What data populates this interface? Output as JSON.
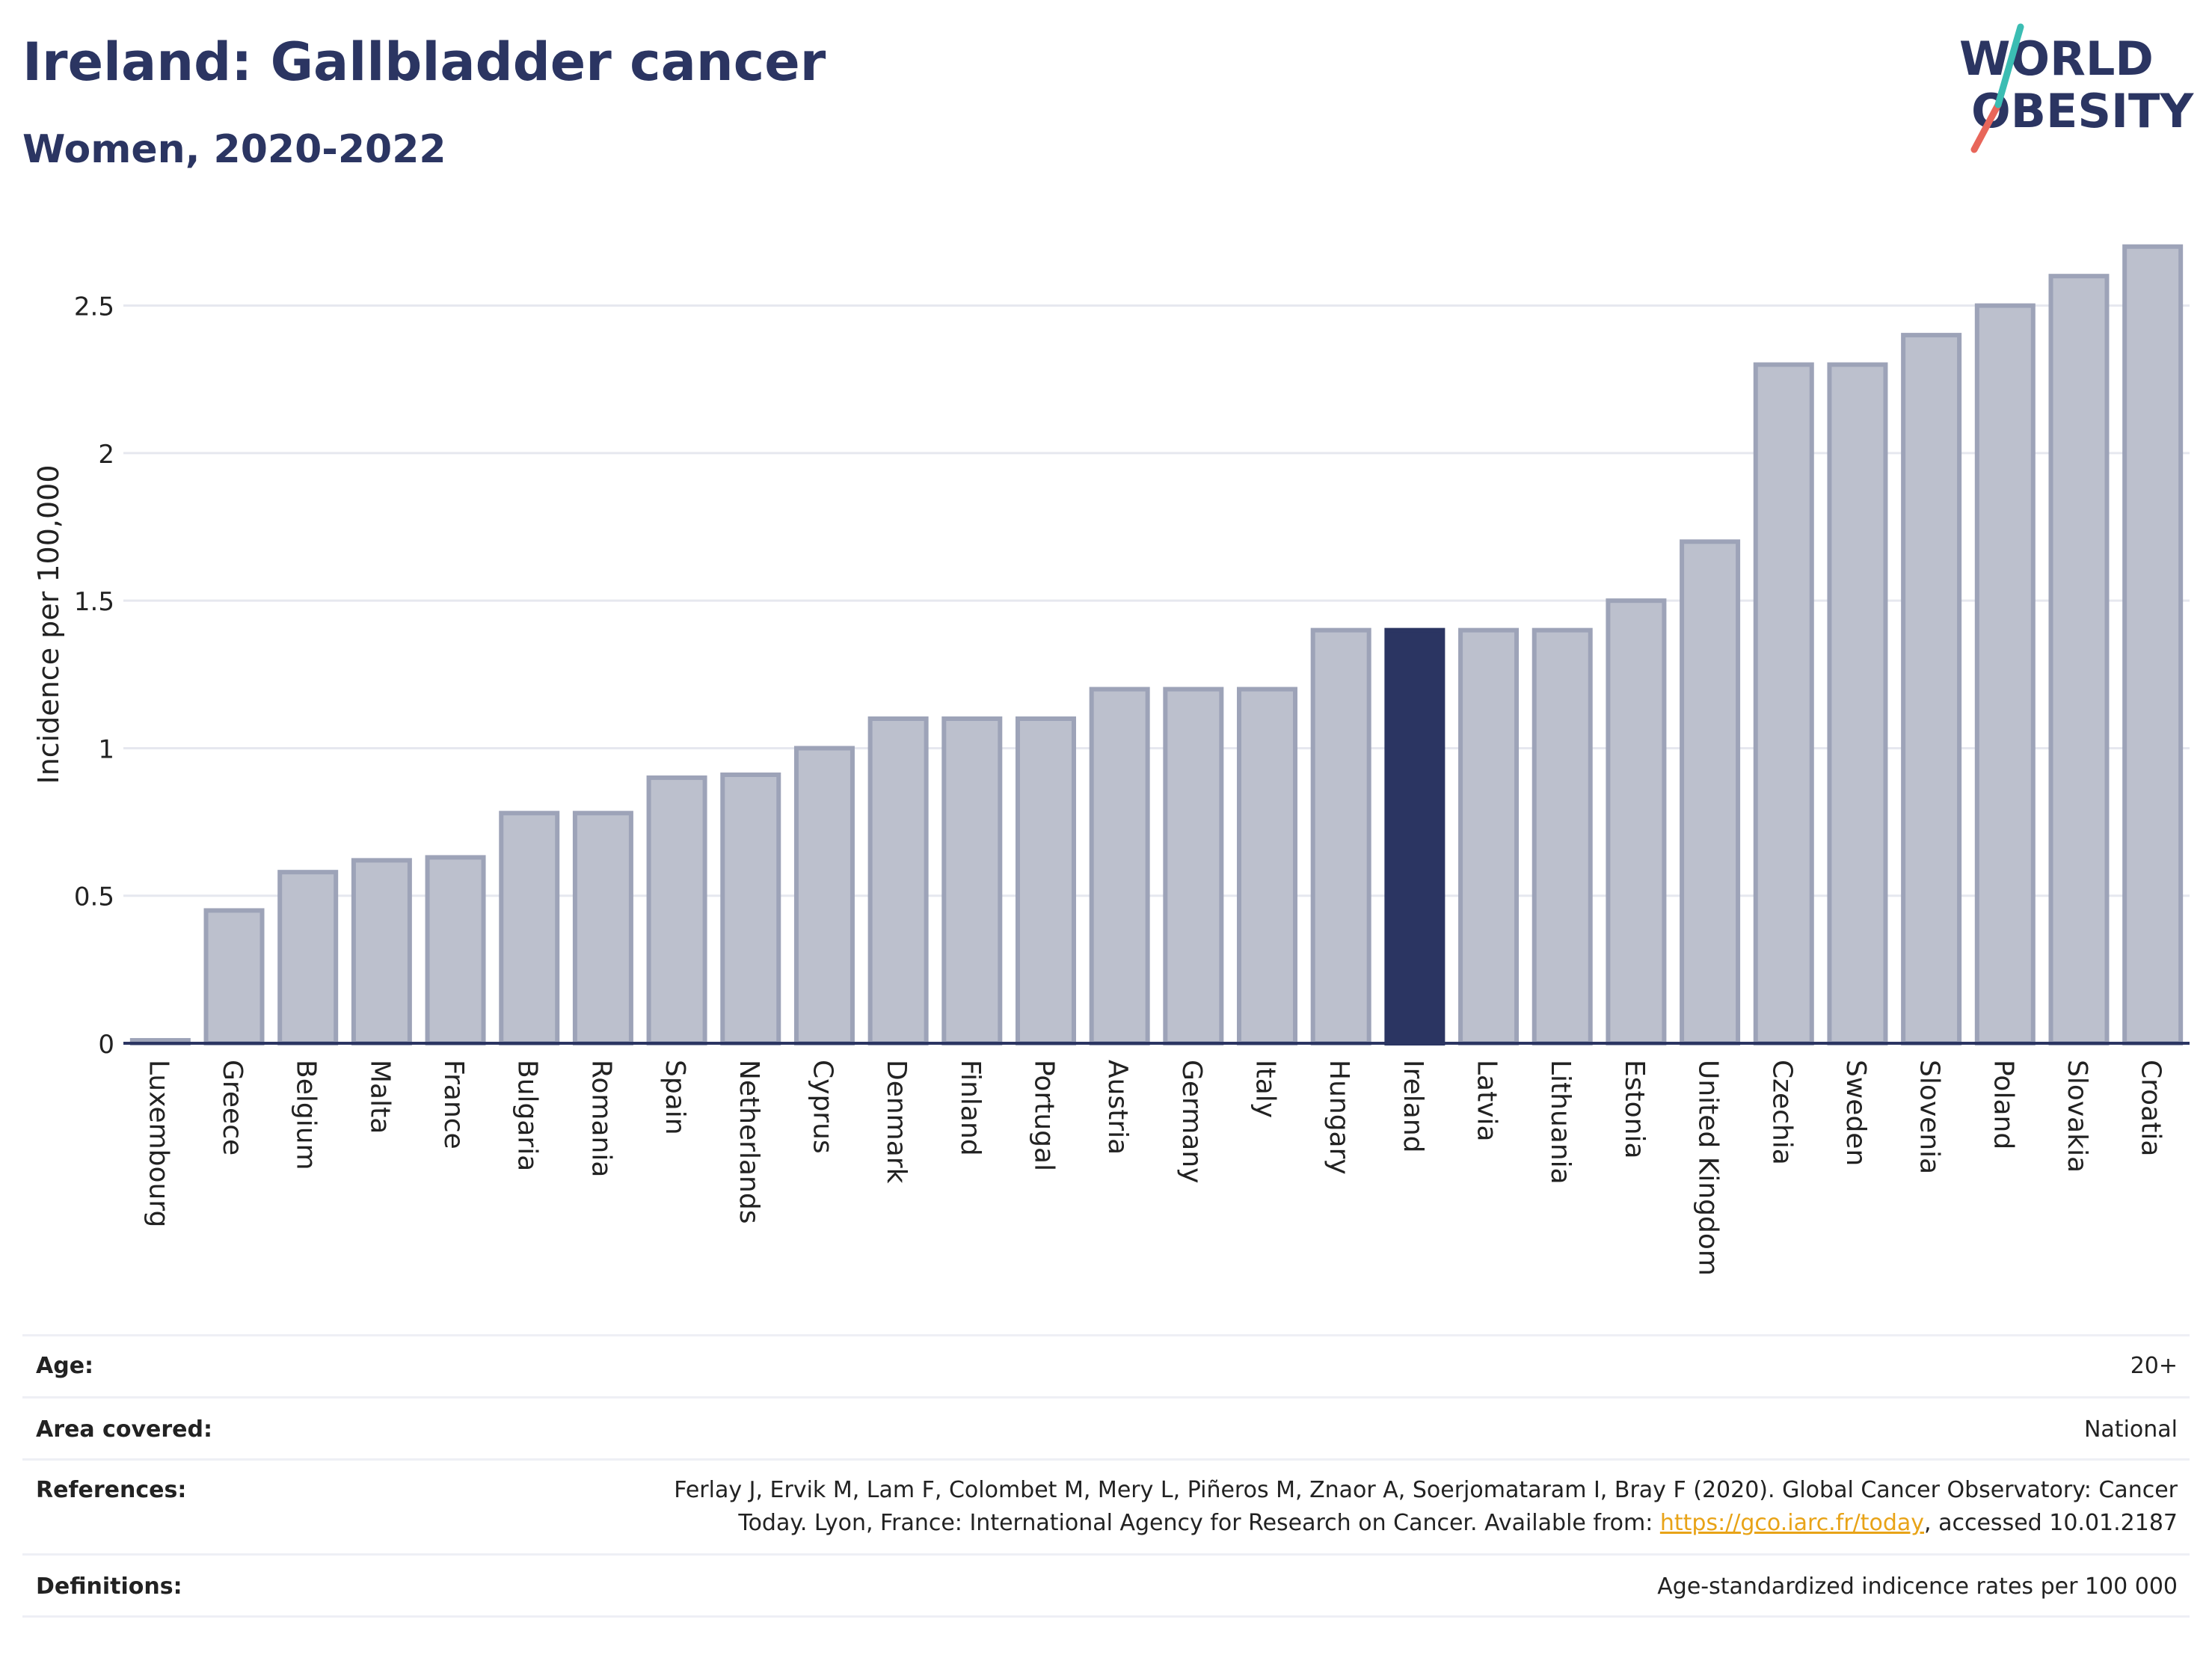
{
  "header": {
    "title": "Ireland: Gallbladder cancer",
    "subtitle": "Women, 2020-2022"
  },
  "logo": {
    "line1": "WORLD",
    "line2": "OBESITY"
  },
  "chart_data": {
    "type": "bar",
    "ylabel": "Incidence per 100,000",
    "ylim": [
      0,
      2.75
    ],
    "yticks": [
      "0",
      "0.5",
      "1",
      "1.5",
      "2",
      "2.5"
    ],
    "ytick_values": [
      0,
      0.5,
      1,
      1.5,
      2,
      2.5
    ],
    "grid": true,
    "highlight": "Ireland",
    "colors": {
      "bar": "#bcc0cd",
      "bar_edge": "#9da3b8",
      "highlight": "#2b3562",
      "grid": "#e6e8ef"
    },
    "categories": [
      "Luxembourg",
      "Greece",
      "Belgium",
      "Malta",
      "France",
      "Bulgaria",
      "Romania",
      "Spain",
      "Netherlands",
      "Cyprus",
      "Denmark",
      "Finland",
      "Portugal",
      "Austria",
      "Germany",
      "Italy",
      "Hungary",
      "Ireland",
      "Latvia",
      "Lithuania",
      "Estonia",
      "United Kingdom",
      "Czechia",
      "Sweden",
      "Slovenia",
      "Poland",
      "Slovakia",
      "Croatia"
    ],
    "values": [
      0.01,
      0.45,
      0.58,
      0.62,
      0.63,
      0.78,
      0.78,
      0.9,
      0.91,
      1.0,
      1.1,
      1.1,
      1.1,
      1.2,
      1.2,
      1.2,
      1.4,
      1.4,
      1.4,
      1.4,
      1.5,
      1.7,
      2.3,
      2.3,
      2.4,
      2.5,
      2.6,
      2.7
    ]
  },
  "info": {
    "age_label": "Age:",
    "age_value": "20+",
    "area_label": "Area covered:",
    "area_value": "National",
    "references_label": "References:",
    "references_text1": "Ferlay J, Ervik M, Lam F, Colombet M, Mery L, Piñeros M, Znaor A, Soerjomataram I, Bray F (2020). Global Cancer Observatory: Cancer",
    "references_text2a": "Today. Lyon, France: International Agency for Research on Cancer. Available from: ",
    "references_link": "https://gco.iarc.fr/today",
    "references_text2b": ", accessed 10.01.2187",
    "definitions_label": "Definitions:",
    "definitions_value": "Age-standardized indicence rates per 100 000"
  }
}
